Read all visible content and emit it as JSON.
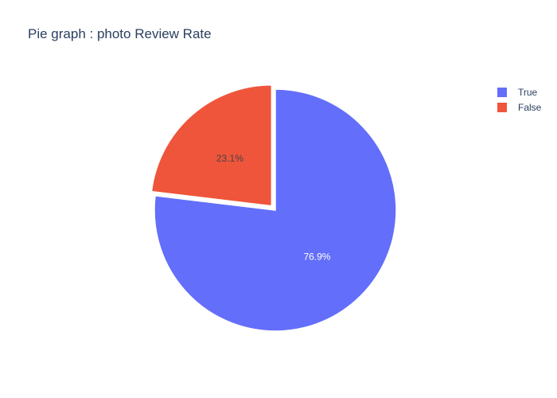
{
  "chart_data": {
    "type": "pie",
    "title": "Pie graph : photo Review Rate",
    "categories": [
      "True",
      "False"
    ],
    "values": [
      76.9,
      23.1
    ],
    "labels": [
      "76.9%",
      "23.1%"
    ],
    "pulled": [
      "False"
    ],
    "colors": {
      "True": "#636efa",
      "False": "#ef553b"
    },
    "label_colors": {
      "True": "#ffffff",
      "False": "#444444"
    },
    "legend": {
      "placement": "top-right",
      "items": [
        {
          "label": "True",
          "color": "#636efa"
        },
        {
          "label": "False",
          "color": "#ef553b"
        }
      ]
    }
  }
}
